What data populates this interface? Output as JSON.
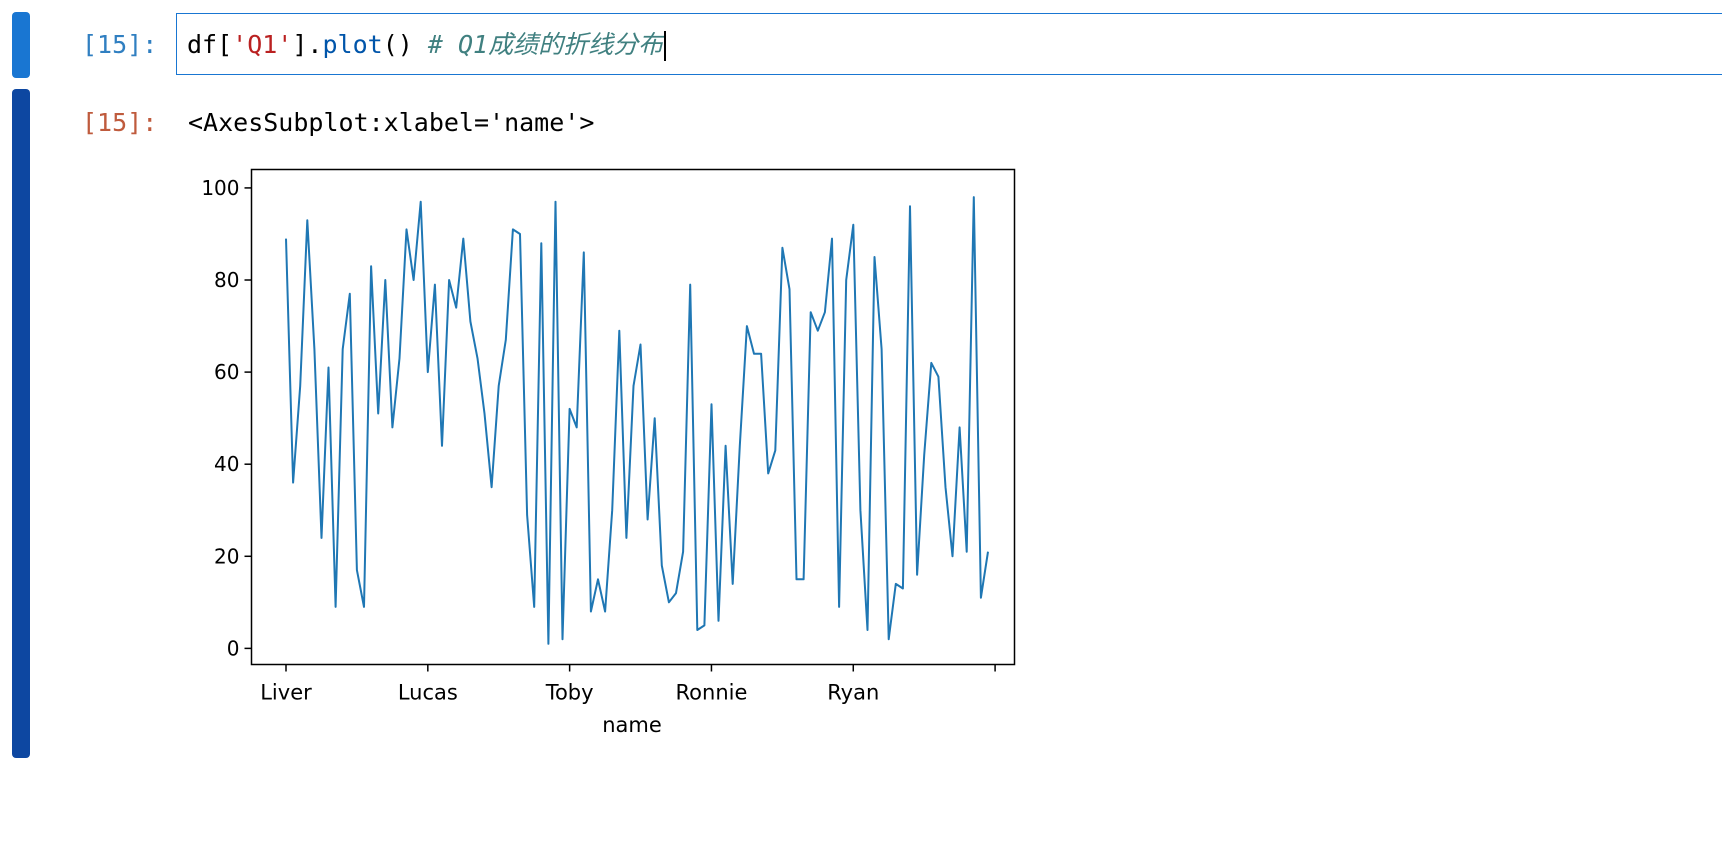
{
  "input_cell": {
    "prompt": "[15]:",
    "code": {
      "df": "df[",
      "key": "'Q1'",
      "close": "].",
      "method": "plot",
      "parens": "() ",
      "comment": "# Q1成绩的折线分布"
    }
  },
  "output_cell": {
    "prompt": "[15]:",
    "repr": "<AxesSubplot:xlabel='name'>"
  },
  "colors": {
    "line": "#1f77b4",
    "input_bar": "#1976d2",
    "output_bar": "#0d47a1",
    "prompt_in": "#307fc1",
    "prompt_out": "#bf5b3d"
  },
  "chart_data": {
    "type": "line",
    "xlabel": "name",
    "ylabel": "",
    "ylim": [
      -3.5,
      104
    ],
    "yticks": [
      0,
      20,
      40,
      60,
      80,
      100
    ],
    "xticks": [
      {
        "index": 0,
        "label": "Liver"
      },
      {
        "index": 20,
        "label": "Lucas"
      },
      {
        "index": 40,
        "label": "Toby"
      },
      {
        "index": 60,
        "label": "Ronnie"
      },
      {
        "index": 80,
        "label": "Ryan"
      },
      {
        "index": 100,
        "label": ""
      }
    ],
    "series": [
      {
        "values": [
          89,
          36,
          57,
          93,
          65,
          24,
          61,
          9,
          65,
          77,
          17,
          9,
          83,
          51,
          80,
          48,
          63,
          91,
          80,
          97,
          60,
          79,
          44,
          80,
          74,
          89,
          71,
          63,
          51,
          35,
          57,
          67,
          91,
          90,
          29,
          9,
          88,
          1,
          97,
          2,
          52,
          48,
          86,
          8,
          15,
          8,
          30,
          69,
          24,
          57,
          66,
          28,
          50,
          18,
          10,
          12,
          21,
          79,
          4,
          5,
          53,
          6,
          44,
          14,
          44,
          70,
          64,
          64,
          38,
          43,
          87,
          78,
          15,
          15,
          73,
          69,
          73,
          89,
          9,
          80,
          92,
          30,
          4,
          85,
          65,
          2,
          14,
          13,
          96,
          16,
          42,
          62,
          59,
          35,
          20,
          48,
          21,
          98,
          11,
          21
        ]
      }
    ]
  }
}
